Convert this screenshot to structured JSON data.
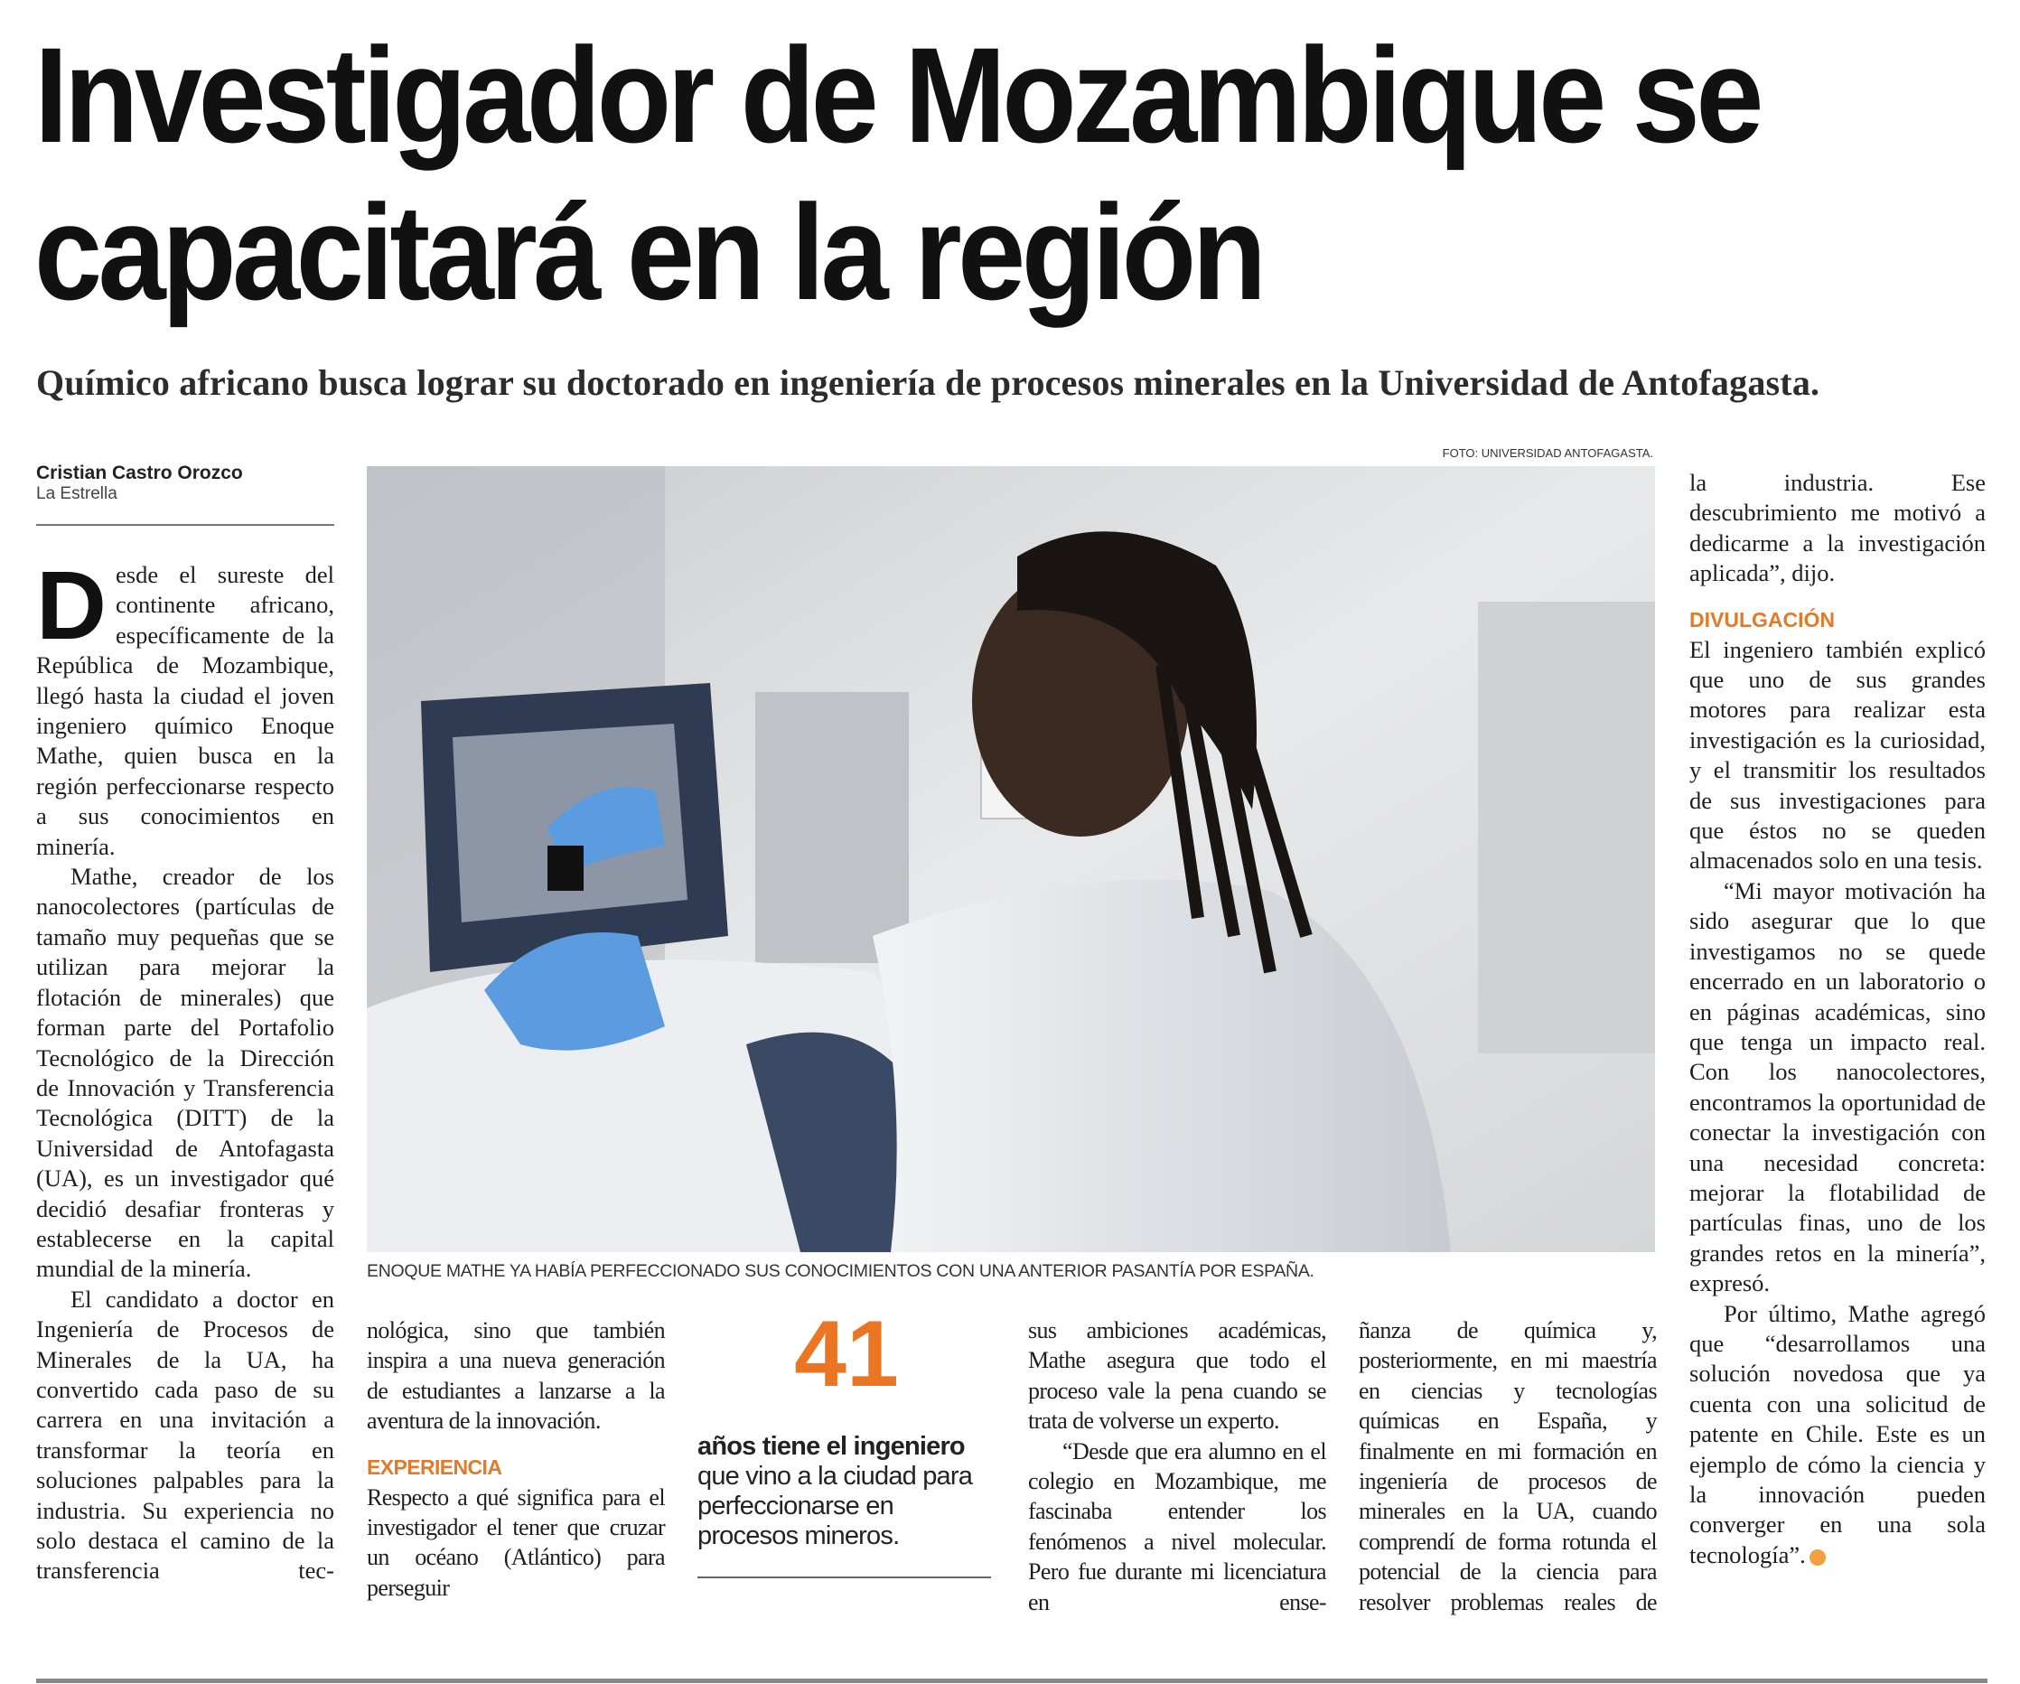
{
  "headline": {
    "line1": "Investigador de Mozambique se",
    "line2": "capacitará en la región"
  },
  "subtitle": "Químico africano busca lograr su doctorado en ingeniería de procesos minerales en la Universidad de Antofagasta.",
  "byline": {
    "author": "Cristian Castro Orozco",
    "outlet": "La Estrella"
  },
  "photo": {
    "credit": "FOTO: UNIVERSIDAD ANTOFAGASTA.",
    "caption": "ENOQUE MATHE YA HABÍA PERFECCIONADO SUS CONOCIMIENTOS CON UNA ANTERIOR PASANTÍA POR ESPAÑA."
  },
  "accent_color": "#ea7522",
  "body": {
    "col1": {
      "dropcap": "D",
      "p1": "esde el sureste del continente africano, específicamente de la República de Mozambique, llegó hasta la ciudad el joven ingeniero químico Enoque Mathe, quien busca en la región perfeccionarse respecto a sus conocimientos en minería.",
      "p2": "Mathe, creador de los nanocolectores (partículas de tamaño muy pequeñas que se utilizan para mejorar la flotación de minerales) que forman parte del Portafolio Tecnológico de la Dirección de Innovación y Transferencia Tecnológica (DITT) de la Universidad de Antofagasta (UA), es un investigador qué decidió desafiar fronteras y establecerse en la capital mundial de la minería.",
      "p3": "El candidato a doctor en Ingeniería de Procesos de Minerales de la UA, ha convertido cada paso de su carrera en una invitación a transformar la teoría en soluciones palpables para la industria. Su experiencia no solo destaca el camino de la transferencia tec-"
    },
    "col2": {
      "p1": "nológica, sino que también inspira a una nueva generación de estudiantes a lanzarse a la aventura de la innovación.",
      "subhead": "EXPERIENCIA",
      "p2": "Respecto a qué significa para el investigador el tener que cruzar un océano (Atlántico) para perseguir"
    },
    "col4": {
      "p1": "sus ambiciones académicas, Mathe asegura que todo el proceso vale la pena cuando se trata de volverse un experto.",
      "p2": "“Desde que era alumno en el colegio en Mozambique, me fascinaba entender los fenómenos a nivel molecular. Pero fue durante mi licenciatura en ense-"
    },
    "col5": {
      "p1": "ñanza de química y, posteriormente, en mi maestría en ciencias y tecnologías químicas en España, y finalmente en mi formación en ingeniería de procesos de minerales en la UA, cuando comprendí de forma rotunda el potencial de la ciencia para resolver problemas reales de"
    },
    "col6": {
      "p1": "la industria. Ese descubrimiento me motivó a dedicarme a la investigación aplicada”, dijo.",
      "subhead": "DIVULGACIÓN",
      "p2": "El ingeniero también explicó que uno de sus grandes motores para realizar esta investigación es la curiosidad, y el transmitir los resultados de sus investigaciones para que éstos no se queden almacenados solo en una tesis.",
      "p3": "“Mi mayor motivación ha sido asegurar que lo que investigamos no se quede encerrado en un laboratorio o en páginas académicas, sino que tenga un impacto real. Con los nanocolectores, encontramos la oportunidad de conectar la investigación con una necesidad concreta: mejorar la flotabilidad de partículas finas, uno de los grandes retos en la minería”, expresó.",
      "p4": "Por último, Mathe agregó que “desarrollamos una solución novedosa que ya cuenta con una solicitud de patente en Chile. Este es un ejemplo de cómo la ciencia y la innovación pueden converger en una sola tecnología”.",
      "end_icon": "end-of-article-icon"
    }
  },
  "stat": {
    "number": "41",
    "bold_text": "años tiene el ingeniero",
    "text": "que vino a la ciudad para perfeccionarse en procesos mineros."
  }
}
